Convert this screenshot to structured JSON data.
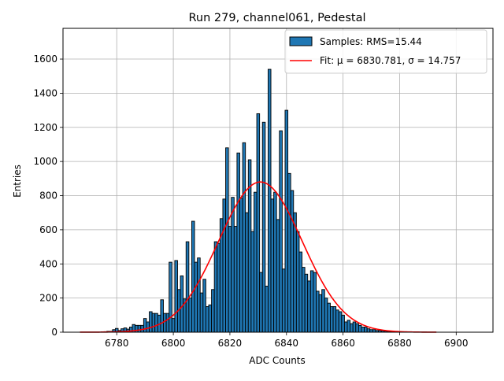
{
  "chart_data": {
    "type": "bar",
    "title": "Run 279, channel061, Pedestal",
    "xlabel": "ADC Counts",
    "ylabel": "Entries",
    "xlim": [
      6761,
      6913
    ],
    "ylim": [
      0,
      1780
    ],
    "xticks": [
      "6780",
      "6800",
      "6820",
      "6840",
      "6860",
      "6880",
      "6900"
    ],
    "yticks": [
      "0",
      "200",
      "400",
      "600",
      "800",
      "1000",
      "1200",
      "1400",
      "1600"
    ],
    "grid": true,
    "legend_position": "top-right",
    "bar_color": "#1f77b4",
    "fit_color": "#ff0000",
    "series": [
      {
        "name": "Samples: RMS=15.44",
        "kind": "histogram",
        "x": [
          6775,
          6776,
          6777,
          6778,
          6779,
          6780,
          6781,
          6782,
          6783,
          6784,
          6785,
          6786,
          6787,
          6788,
          6789,
          6790,
          6791,
          6792,
          6793,
          6794,
          6795,
          6796,
          6797,
          6798,
          6799,
          6800,
          6801,
          6802,
          6803,
          6804,
          6805,
          6806,
          6807,
          6808,
          6809,
          6810,
          6811,
          6812,
          6813,
          6814,
          6815,
          6816,
          6817,
          6818,
          6819,
          6820,
          6821,
          6822,
          6823,
          6824,
          6825,
          6826,
          6827,
          6828,
          6829,
          6830,
          6831,
          6832,
          6833,
          6834,
          6835,
          6836,
          6837,
          6838,
          6839,
          6840,
          6841,
          6842,
          6843,
          6844,
          6845,
          6846,
          6847,
          6848,
          6849,
          6850,
          6851,
          6852,
          6853,
          6854,
          6855,
          6856,
          6857,
          6858,
          6859,
          6860,
          6861,
          6862,
          6863,
          6864,
          6865,
          6866,
          6867,
          6868,
          6869,
          6870,
          6871,
          6872,
          6873,
          6874,
          6875,
          6876,
          6877,
          6878,
          6879,
          6880,
          6881,
          6882,
          6883,
          6884,
          6885,
          6886,
          6887,
          6888,
          6889,
          6890
        ],
        "values": [
          2,
          3,
          5,
          5,
          15,
          22,
          10,
          20,
          25,
          18,
          30,
          45,
          40,
          40,
          40,
          80,
          60,
          120,
          110,
          110,
          100,
          190,
          110,
          110,
          410,
          80,
          420,
          250,
          330,
          195,
          530,
          200,
          650,
          410,
          435,
          230,
          310,
          150,
          160,
          250,
          530,
          520,
          665,
          780,
          1080,
          620,
          790,
          620,
          1050,
          785,
          1110,
          700,
          1010,
          590,
          820,
          1280,
          350,
          1230,
          270,
          1540,
          780,
          820,
          660,
          1180,
          370,
          1300,
          930,
          830,
          700,
          590,
          470,
          380,
          340,
          300,
          360,
          350,
          240,
          220,
          250,
          200,
          170,
          150,
          150,
          130,
          120,
          100,
          60,
          70,
          50,
          60,
          50,
          40,
          30,
          30,
          20,
          15,
          15,
          10,
          10,
          8,
          6,
          5,
          4,
          3,
          3,
          2,
          2,
          1,
          1,
          1,
          1,
          1,
          1,
          1,
          1,
          0
        ]
      },
      {
        "name": "Fit: μ = 6830.781, σ = 14.757",
        "kind": "gaussian",
        "amplitude": 880,
        "mu": 6830.781,
        "sigma": 14.757,
        "x_range": [
          6767,
          6893
        ]
      }
    ]
  }
}
